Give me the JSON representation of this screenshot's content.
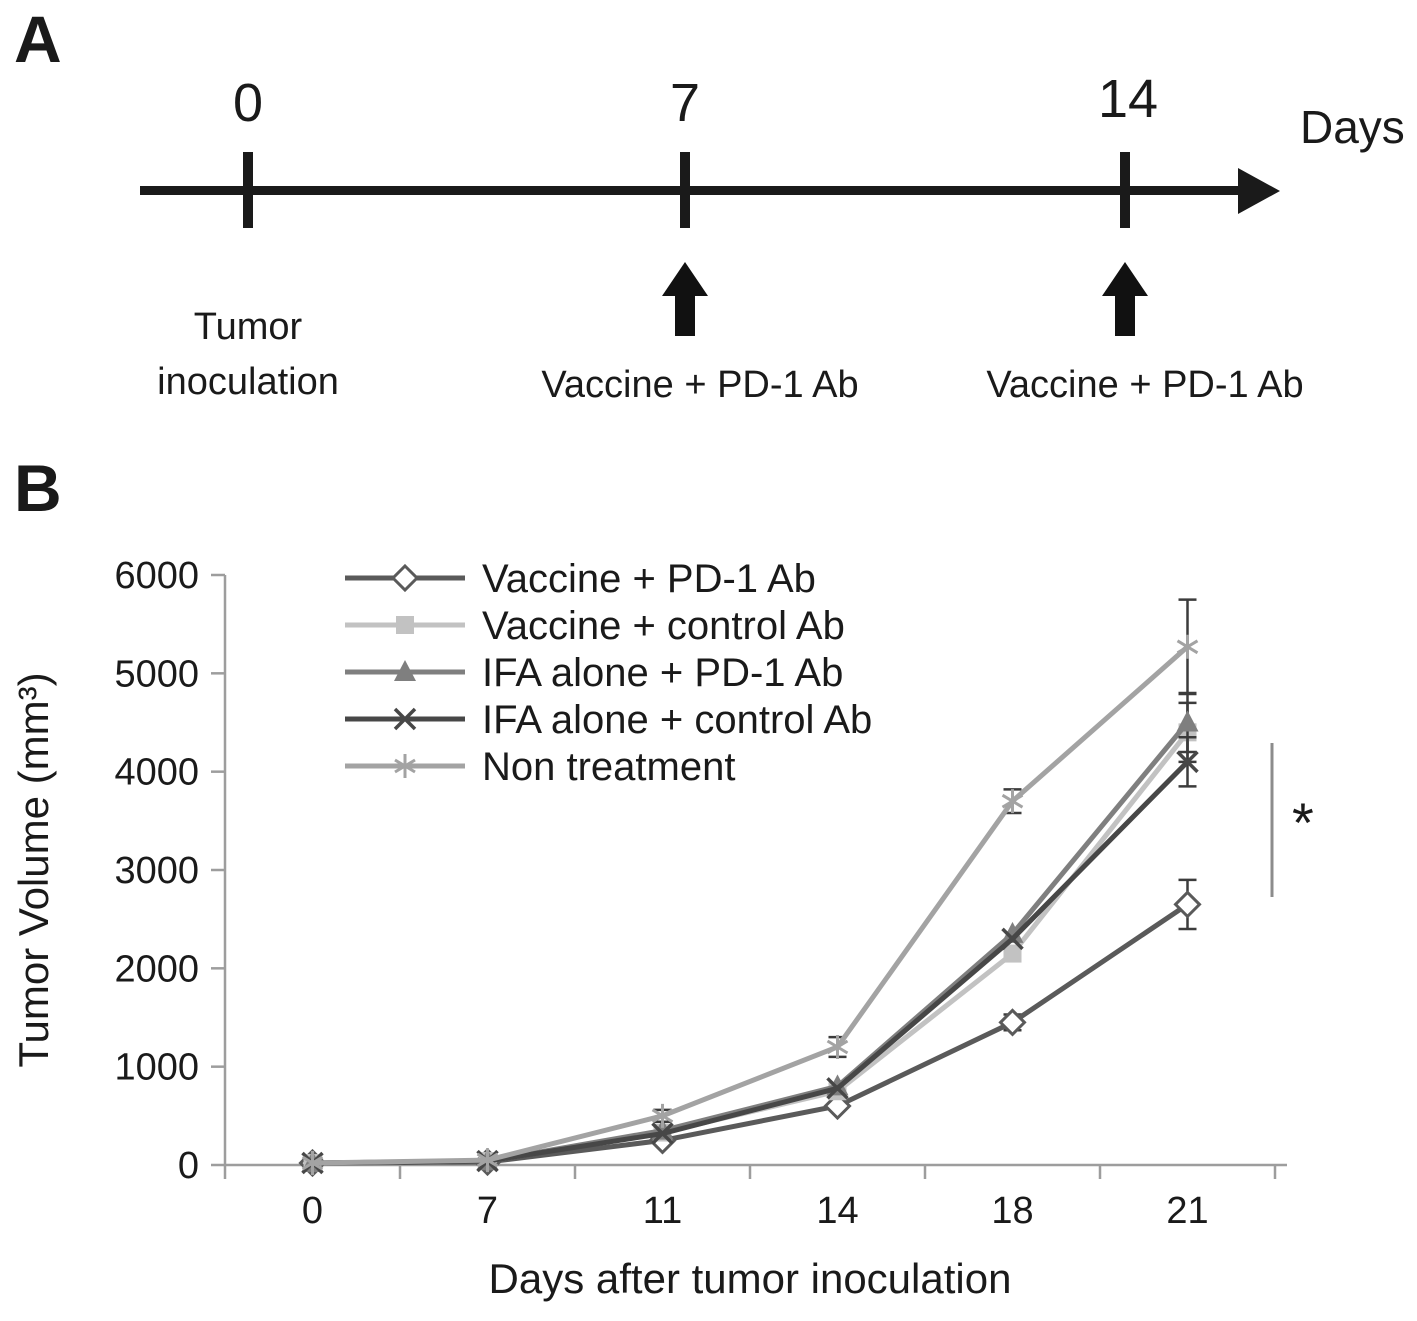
{
  "panel_a": {
    "label": "A",
    "days_label": "Days",
    "timeline": {
      "ticks": [
        {
          "day": "0",
          "label": "Tumor inoculation",
          "has_arrow": false
        },
        {
          "day": "7",
          "label": "Vaccine + PD-1 Ab",
          "has_arrow": true
        },
        {
          "day": "14",
          "label": "Vaccine + PD-1 Ab",
          "has_arrow": true
        }
      ]
    }
  },
  "panel_b": {
    "label": "B",
    "significance_marker": "*"
  },
  "chart_data": {
    "type": "line",
    "title": "",
    "xlabel": "Days after tumor inoculation",
    "ylabel": "Tumor Volume (mm³)",
    "categories": [
      "0",
      "7",
      "11",
      "14",
      "18",
      "21"
    ],
    "ylim": [
      0,
      6000
    ],
    "yticks": [
      0,
      1000,
      2000,
      3000,
      4000,
      5000,
      6000
    ],
    "grid": false,
    "legend_position": "inside-top-left",
    "series": [
      {
        "name": "Vaccine + PD-1 Ab",
        "marker": "diamond-open",
        "color": "#5a5a5a",
        "values": [
          20,
          30,
          250,
          600,
          1450,
          2650
        ],
        "error": [
          0,
          0,
          0,
          0,
          80,
          250
        ]
      },
      {
        "name": "Vaccine + control Ab",
        "marker": "square-filled",
        "color": "#c2c2c2",
        "values": [
          20,
          40,
          330,
          750,
          2150,
          4400
        ],
        "error": [
          0,
          0,
          0,
          0,
          0,
          300
        ]
      },
      {
        "name": "IFA alone + PD-1 Ab",
        "marker": "triangle-filled",
        "color": "#7f7f7f",
        "values": [
          20,
          40,
          350,
          800,
          2350,
          4500
        ],
        "error": [
          0,
          0,
          0,
          0,
          0,
          300
        ]
      },
      {
        "name": "IFA alone + control Ab",
        "marker": "x",
        "color": "#474747",
        "values": [
          20,
          40,
          320,
          780,
          2300,
          4100
        ],
        "error": [
          0,
          0,
          0,
          0,
          0,
          250
        ]
      },
      {
        "name": "Non treatment",
        "marker": "asterisk",
        "color": "#a3a3a3",
        "values": [
          20,
          50,
          500,
          1200,
          3700,
          5270
        ],
        "error": [
          0,
          0,
          60,
          100,
          120,
          480
        ]
      }
    ]
  }
}
